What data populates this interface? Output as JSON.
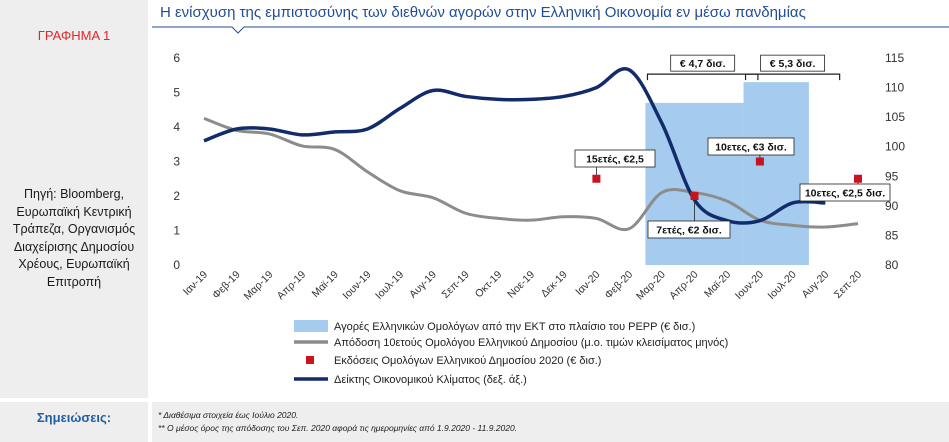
{
  "figure_label": "ΓΡΑΦΗΜΑ 1",
  "source": "Πηγή: Bloomberg, Ευρωπαϊκή Κεντρική Τράπεζα, Οργανισμός Διαχείρισης Δημοσίου Χρέους, Ευρωπαϊκή Επιτροπή",
  "notes_label": "Σημειώσεις:",
  "notes": [
    "* Διαθέσιμα στοιχεία έως Ιούλιο 2020.",
    "** Ο μέσος όρος της απόδοσης του Σεπ. 2020 αφορά τις ημερομηνίες από 1.9.2020 - 11.9.2020."
  ],
  "colors": {
    "bars": "#a5cbef",
    "yield": "#8c8c8c",
    "issuance": "#c8141e",
    "climate": "#122c6b",
    "title": "#1f4e96",
    "label": "#e3262c"
  },
  "chart_data": {
    "type": "line",
    "title": "Η ενίσχυση της εμπιστοσύνης των διεθνών αγορών στην Ελληνική Οικονομία εν μέσω πανδημίας",
    "categories": [
      "Ιαν-19",
      "Φεβ-19",
      "Μαρ-19",
      "Απρ-19",
      "Μαϊ-19",
      "Ιουν-19",
      "Ιουλ-19",
      "Αυγ-19",
      "Σεπ-19",
      "Οκτ-19",
      "Νοε-19",
      "Δεκ-19",
      "Ιαν-20",
      "Φεβ-20",
      "Μαρ-20",
      "Απρ-20",
      "Μαϊ-20",
      "Ιουν-20",
      "Ιουλ-20",
      "Αυγ-20",
      "Σεπ-20"
    ],
    "ylim_left": [
      0,
      6
    ],
    "yticks_left": [
      "0",
      "1",
      "2",
      "3",
      "4",
      "5",
      "6"
    ],
    "ylim_right": [
      80,
      115
    ],
    "yticks_right": [
      "80",
      "85",
      "90",
      "95",
      "100",
      "105",
      "110",
      "115"
    ],
    "series": [
      {
        "name": "Αγορές Ελληνικών Ομολόγων από την ΕΚΤ στο πλαίσιο του PEPP (€ δισ.)",
        "type": "bar",
        "axis": "left",
        "values": [
          null,
          null,
          null,
          null,
          null,
          null,
          null,
          null,
          null,
          null,
          null,
          null,
          null,
          null,
          4.7,
          4.7,
          4.7,
          5.3,
          5.3,
          null,
          null
        ]
      },
      {
        "name": "Απόδοση 10ετούς Ομολόγου Ελληνικού Δημοσίου (μ.ο. τιμών κλεισίματος μηνός)",
        "type": "line",
        "axis": "left",
        "values": [
          4.25,
          3.9,
          3.8,
          3.45,
          3.35,
          2.7,
          2.15,
          1.95,
          1.5,
          1.35,
          1.3,
          1.4,
          1.35,
          1.05,
          2.1,
          2.1,
          1.85,
          1.3,
          1.15,
          1.1,
          1.2
        ]
      },
      {
        "name": "Εκδόσεις Ομολόγων Ελληνικού Δημοσίου 2020 (€ δισ.)",
        "type": "scatter",
        "axis": "left",
        "points": [
          {
            "x": "Ιαν-20",
            "y": 2.5,
            "label": "15ετές, €2,5"
          },
          {
            "x": "Απρ-20",
            "y": 2.0,
            "label": "7ετές, €2 δισ."
          },
          {
            "x": "Ιουν-20",
            "y": 3.0,
            "label": "10ετες, €3 δισ."
          },
          {
            "x": "Σεπ-20",
            "y": 2.5,
            "label": "10ετες, €2,5 δισ."
          }
        ]
      },
      {
        "name": "Δείκτης Οικονομικού Κλίματος (δεξ. άξ.)",
        "type": "line",
        "axis": "right",
        "values": [
          101,
          103,
          103,
          102,
          102.5,
          103,
          106.5,
          109.5,
          108.5,
          108,
          108,
          108.5,
          110,
          113,
          104,
          91,
          87.5,
          87.5,
          90.5,
          90.5,
          null
        ]
      }
    ],
    "brackets": [
      {
        "from": "Μαρ-20",
        "to": "Ιουν-20",
        "label": "€ 4,7 δισ."
      },
      {
        "from": "Ιουν-20",
        "to": "Αυγ-20",
        "label": "€ 5,3 δισ."
      }
    ],
    "legend_position": "bottom"
  }
}
